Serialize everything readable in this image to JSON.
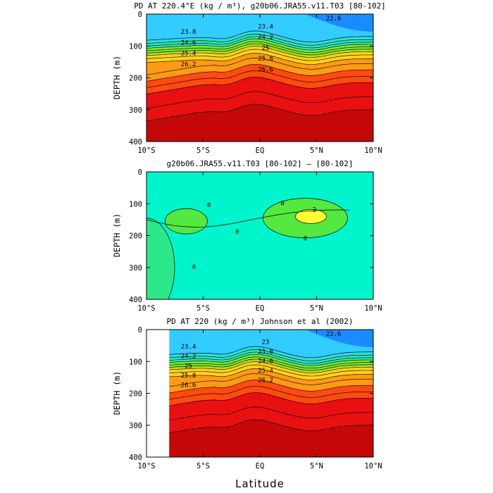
{
  "chart_data": [
    {
      "type": "heatmap",
      "title": "PD AT 220.4°E (kg / m³), g20b06.JRA55.v11.T03 [80-102]",
      "xlabel": "",
      "ylabel": "DEPTH (m)",
      "xlim": [
        -10,
        10
      ],
      "ylim": [
        400,
        0
      ],
      "x_ticks": [
        "10°S",
        "5°S",
        "EQ",
        "5°N",
        "10°N"
      ],
      "y_ticks": [
        "0",
        "100",
        "200",
        "300",
        "400"
      ],
      "contour_labels": [
        "22.6",
        "23.4",
        "23.8",
        "24.2",
        "24.6",
        "25",
        "25.4",
        "25.8",
        "26.2",
        "26.6"
      ],
      "color_levels": [
        {
          "upper_depth": 0,
          "color": "#33ccff"
        },
        {
          "upper_depth": 75,
          "color": "#2fe6b9"
        },
        {
          "upper_depth": 95,
          "color": "#7fe82a"
        },
        {
          "upper_depth": 115,
          "color": "#ffd21a"
        },
        {
          "upper_depth": 140,
          "color": "#ff9a14"
        },
        {
          "upper_depth": 175,
          "color": "#ff4a10"
        },
        {
          "upper_depth": 215,
          "color": "#e81010"
        },
        {
          "upper_depth": 300,
          "color": "#c40808"
        }
      ],
      "region_xmin": -10
    },
    {
      "type": "heatmap",
      "title": "g20b06.JRA55.v11.T03 [80-102] –  [80-102]",
      "xlabel": "",
      "ylabel": "DEPTH (m)",
      "xlim": [
        -10,
        10
      ],
      "ylim": [
        400,
        0
      ],
      "x_ticks": [
        "10°S",
        "5°S",
        "EQ",
        "5°N",
        "10°N"
      ],
      "y_ticks": [
        "0",
        "100",
        "200",
        "300",
        "400"
      ],
      "contour_labels": [
        "0",
        "0",
        "0",
        "0",
        "0",
        "2"
      ],
      "background_color": "#00f5cc",
      "anomalies": [
        {
          "label": "positive",
          "x_center": -6.5,
          "depth_center": 155,
          "color": "#55e840"
        },
        {
          "label": "positive",
          "x_center": 4.0,
          "depth_center": 145,
          "color": "#55e840"
        },
        {
          "label": "max",
          "x_center": 4.5,
          "depth_center": 140,
          "color": "#ffff33"
        },
        {
          "label": "near-zero",
          "x_center": -10,
          "depth_center": 300,
          "color": "#2ce88a"
        }
      ]
    },
    {
      "type": "heatmap",
      "title": "PD AT 220 (kg / m³) Johnson et al (2002)",
      "xlabel": "Latitude",
      "ylabel": "DEPTH (m)",
      "xlim": [
        -10,
        10
      ],
      "ylim": [
        400,
        0
      ],
      "x_ticks": [
        "10°S",
        "5°S",
        "EQ",
        "5°N",
        "10°N"
      ],
      "y_ticks": [
        "0",
        "100",
        "200",
        "300",
        "400"
      ],
      "contour_labels": [
        "22.6",
        "23",
        "23.4",
        "23.8",
        "24.2",
        "24.6",
        "25",
        "25.4",
        "25.8",
        "26.2",
        "26.6"
      ],
      "color_levels": [
        {
          "upper_depth": 0,
          "color": "#33ccff"
        },
        {
          "upper_depth": 75,
          "color": "#2fe6b9"
        },
        {
          "upper_depth": 95,
          "color": "#7fe82a"
        },
        {
          "upper_depth": 115,
          "color": "#ffd21a"
        },
        {
          "upper_depth": 140,
          "color": "#ff9a14"
        },
        {
          "upper_depth": 175,
          "color": "#ff4a10"
        },
        {
          "upper_depth": 215,
          "color": "#e81010"
        },
        {
          "upper_depth": 300,
          "color": "#c40808"
        }
      ],
      "region_xmin": -8
    }
  ]
}
